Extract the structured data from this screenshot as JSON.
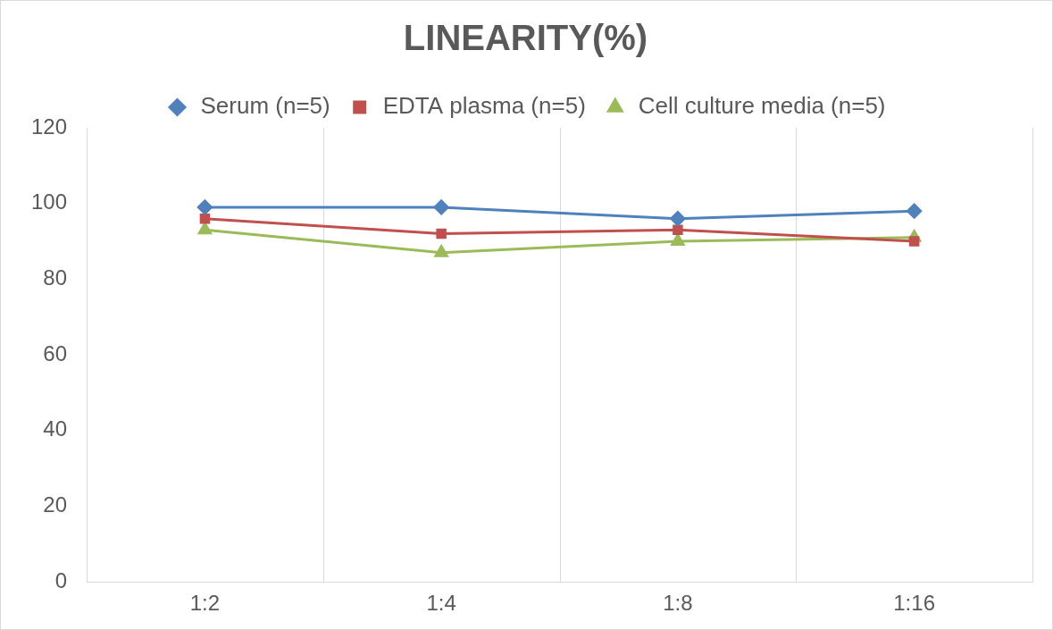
{
  "chart_data": {
    "type": "line",
    "title": "LINEARITY(%)",
    "categories": [
      "1:2",
      "1:4",
      "1:8",
      "1:16"
    ],
    "series": [
      {
        "name": "Serum (n=5)",
        "color": "#4f81bd",
        "marker": "diamond",
        "values": [
          99,
          99,
          96,
          98
        ]
      },
      {
        "name": "EDTA plasma (n=5)",
        "color": "#c0504d",
        "marker": "square",
        "values": [
          96,
          92,
          93,
          90
        ]
      },
      {
        "name": "Cell culture media (n=5)",
        "color": "#9bbb59",
        "marker": "triangle",
        "values": [
          93,
          87,
          90,
          91
        ]
      }
    ],
    "ylim": [
      0,
      120
    ],
    "yticks": [
      0,
      20,
      40,
      60,
      80,
      100,
      120
    ],
    "grid": true,
    "legend": "top"
  }
}
